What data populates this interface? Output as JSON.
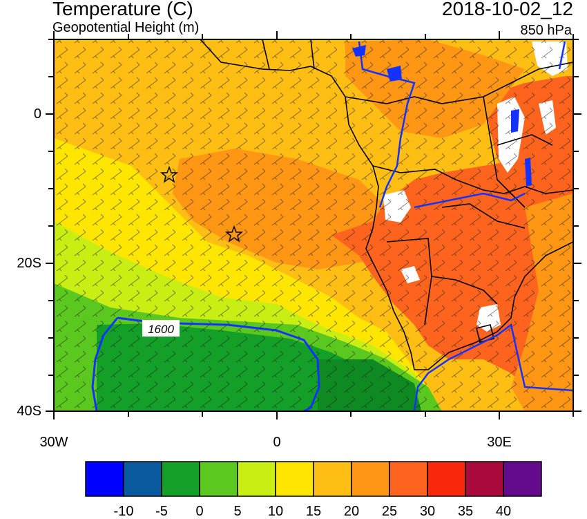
{
  "header": {
    "title": "Temperature (C)",
    "subtitle": "Geopotential Height (m)",
    "datetime": "2018-10-02_12",
    "level": "850 hPa"
  },
  "map": {
    "lat_labels": [
      "0",
      "20S",
      "40S"
    ],
    "lon_labels": [
      "30W",
      "0",
      "30E"
    ],
    "contour_label": "1600",
    "markers": [
      "star-marker",
      "star-marker"
    ]
  },
  "colorbar": {
    "labels": [
      "-10",
      "-5",
      "0",
      "5",
      "10",
      "15",
      "20",
      "25",
      "30",
      "35",
      "40"
    ],
    "colors": [
      "#0000ff",
      "#0a5aa0",
      "#14a028",
      "#5ac81e",
      "#c8ee14",
      "#ffe600",
      "#ffbe14",
      "#ff9614",
      "#ff641e",
      "#fa280a",
      "#aa0a3c",
      "#640a8c"
    ]
  },
  "colors": {
    "land_border": "#000000",
    "contour": "#1432ff",
    "missing": "#ffffff"
  }
}
